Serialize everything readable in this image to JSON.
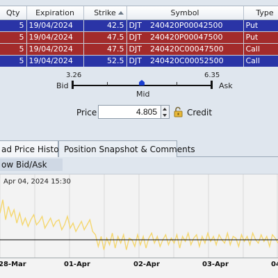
{
  "legs": {
    "columns": [
      "Qty",
      "Expiration",
      "Strike",
      "Symbol",
      "Type"
    ],
    "rows": [
      {
        "qty": "5",
        "expiration": "19/04/2024",
        "strike": "42.5",
        "root": "DJT",
        "symbol": "240420P00042500",
        "type": "Put",
        "style": "put"
      },
      {
        "qty": "5",
        "expiration": "19/04/2024",
        "strike": "47.5",
        "root": "DJT",
        "symbol": "240420P00047500",
        "type": "Put",
        "style": "call"
      },
      {
        "qty": "5",
        "expiration": "19/04/2024",
        "strike": "47.5",
        "root": "DJT",
        "symbol": "240420C00047500",
        "type": "Call",
        "style": "call"
      },
      {
        "qty": "5",
        "expiration": "19/04/2024",
        "strike": "52.5",
        "root": "DJT",
        "symbol": "240420C00052500",
        "type": "Call",
        "style": "put"
      }
    ]
  },
  "scale": {
    "bid_value": "3.26",
    "ask_value": "6.35",
    "bid_label": "Bid",
    "ask_label": "Ask",
    "mid_label": "Mid"
  },
  "order": {
    "price_label": "Price",
    "price_value": "4.805",
    "credit_label": "Credit"
  },
  "tabs": [
    {
      "label": "ad Price History",
      "active": true
    },
    {
      "label": "Position Snapshot & Comments",
      "active": false
    }
  ],
  "subtab": {
    "label": "ow Bid/Ask"
  },
  "chart_data": {
    "type": "line",
    "title": "",
    "tooltip_date": "Apr 04, 2024 15:30",
    "tooltip_value": "",
    "x_ticks": [
      "28-Mar",
      "01-Apr",
      "02-Apr",
      "03-Apr",
      "04"
    ],
    "series_color": "#f5d76e",
    "zero_line_color": "#000000",
    "series": [
      {
        "values": [
          1.6,
          2.4,
          1.2,
          2.0,
          1.4,
          1.8,
          1.0,
          1.6,
          0.9,
          1.3,
          0.8,
          1.2,
          1.5,
          0.9,
          1.1,
          1.4,
          0.7,
          1.0,
          1.3,
          0.8,
          1.1,
          1.2,
          0.6,
          0.9,
          1.4,
          0.7,
          1.0,
          0.5,
          0.8,
          1.1,
          0.6,
          0.9,
          1.2,
          0.5,
          0.3,
          -0.4,
          0.2,
          -0.6,
          0.1,
          -0.3,
          0.4,
          -0.5,
          0.2,
          -0.2,
          0.3,
          -0.6,
          0.1,
          0.0,
          -0.4,
          0.3,
          -0.3,
          0.2,
          -0.5,
          0.1,
          0.4,
          -0.2,
          0.2,
          -0.4,
          0.0,
          0.3,
          -0.3,
          0.1,
          -0.2,
          0.3,
          -0.5,
          0.2,
          -0.1,
          0.4,
          -0.3,
          0.1,
          0.3,
          -0.4,
          0.2,
          -0.2,
          0.4,
          -0.1,
          0.2,
          -0.3,
          0.3,
          0.0,
          -0.2,
          0.4,
          -0.3,
          0.2,
          0.1,
          -0.4,
          0.3,
          -0.1,
          0.2,
          -0.3,
          0.4,
          0.0,
          -0.2,
          0.3,
          -0.1,
          0.2,
          -0.4,
          0.3,
          0.1,
          -0.2
        ]
      }
    ],
    "ylim": [
      -1.0,
      3.0
    ]
  }
}
